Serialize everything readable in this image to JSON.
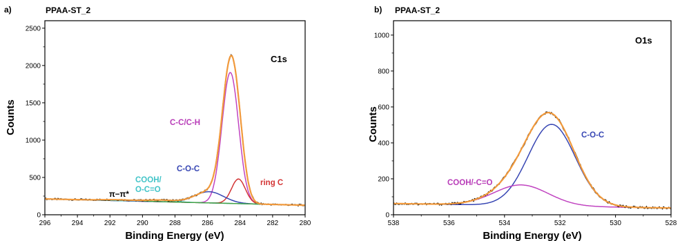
{
  "chart_data": [
    {
      "type": "line",
      "panel_label": "a)",
      "title": "PPAA-ST_2",
      "region_label": "C1s",
      "xlabel": "Binding Energy (eV)",
      "ylabel": "Counts",
      "xlim": [
        296,
        280
      ],
      "ylim": [
        0,
        2600
      ],
      "x_reversed": true,
      "xticks": [
        296,
        294,
        292,
        290,
        288,
        286,
        284,
        282,
        280
      ],
      "yticks": [
        0,
        500,
        1000,
        1500,
        2000,
        2500
      ],
      "grid": false,
      "background": 170,
      "raw": {
        "color": "#000000"
      },
      "envelope": {
        "color": "#f29a3c"
      },
      "components": [
        {
          "name": "C-C/C-H",
          "color": "#c043c0",
          "center": 284.6,
          "fwhm": 1.2,
          "height": 1755,
          "label_color": "#b83cb8"
        },
        {
          "name": "ring C",
          "color": "#d33535",
          "center": 284.1,
          "fwhm": 1.0,
          "height": 330,
          "label_color": "#d33535"
        },
        {
          "name": "C-O-C",
          "color": "#3645b3",
          "center": 285.9,
          "fwhm": 2.1,
          "height": 150,
          "label_color": "#3645b3"
        },
        {
          "name": "COOH/\nO-C=O",
          "color": "#42c4c8",
          "center": 288.9,
          "fwhm": 2.0,
          "height": 22,
          "label_color": "#42c4c8"
        },
        {
          "name": "π−π*",
          "color": "#43a047",
          "center": 291.5,
          "fwhm": 2.5,
          "height": 12,
          "label_color": "#000000"
        }
      ]
    },
    {
      "type": "line",
      "panel_label": "b)",
      "title": "PPAA-ST_2",
      "region_label": "O1s",
      "xlabel": "Binding Energy (eV)",
      "ylabel": "Counts",
      "xlim": [
        538,
        528
      ],
      "ylim": [
        0,
        1080
      ],
      "x_reversed": true,
      "xticks": [
        538,
        536,
        534,
        532,
        530,
        528
      ],
      "yticks": [
        0,
        200,
        400,
        600,
        800,
        1000
      ],
      "grid": false,
      "background": 50,
      "raw": {
        "color": "#000000"
      },
      "envelope": {
        "color": "#f29a3c"
      },
      "components": [
        {
          "name": "C-O-C",
          "color": "#3645b3",
          "center": 532.3,
          "fwhm": 2.0,
          "height": 455,
          "label_color": "#3645b3"
        },
        {
          "name": "COOH/-C=O",
          "color": "#c043c0",
          "center": 533.4,
          "fwhm": 2.3,
          "height": 115,
          "label_color": "#b83cb8"
        }
      ]
    }
  ]
}
